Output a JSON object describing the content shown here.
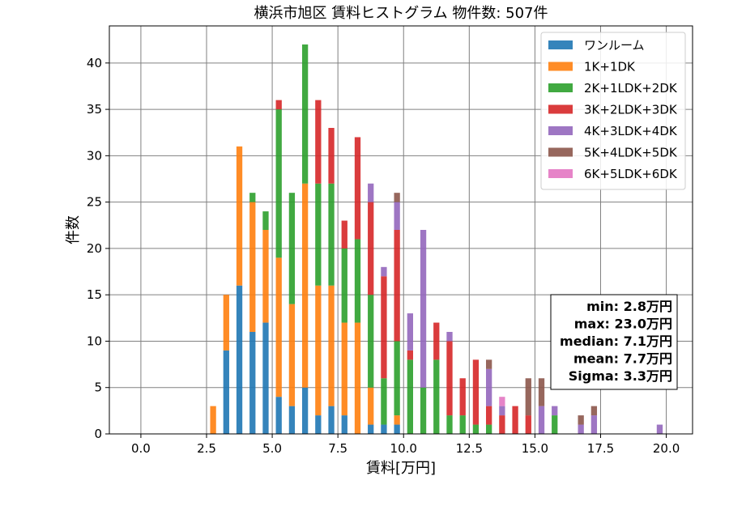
{
  "chart_data": {
    "type": "bar",
    "stacked": true,
    "title": "横浜市旭区 賃料ヒストグラム 物件数: 507件",
    "xlabel": "賃料[万円]",
    "ylabel": "件数",
    "xlim": [
      -1.2,
      21.0
    ],
    "ylim": [
      0,
      44
    ],
    "xticks": [
      "0.0",
      "2.5",
      "5.0",
      "7.5",
      "10.0",
      "12.5",
      "15.0",
      "17.5",
      "20.0"
    ],
    "yticks": [
      "0",
      "5",
      "10",
      "15",
      "20",
      "25",
      "30",
      "35",
      "40"
    ],
    "grid": true,
    "legend_position": "top-right",
    "bin_centers": [
      2.5,
      2.75,
      3.0,
      3.25,
      3.5,
      3.75,
      4.0,
      4.25,
      4.5,
      4.75,
      5.0,
      5.25,
      5.5,
      5.75,
      6.0,
      6.25,
      6.5,
      6.75,
      7.0,
      7.25,
      7.5,
      7.75,
      8.0,
      8.25,
      8.5,
      8.75,
      9.0,
      9.25,
      9.5,
      9.75,
      10.0,
      10.25,
      10.5,
      10.75,
      11.0,
      11.25,
      11.5,
      11.75,
      12.0,
      12.25,
      12.5,
      12.75,
      13.0,
      13.25,
      13.5,
      13.75,
      14.0,
      14.25,
      14.5,
      14.75,
      15.0,
      15.25,
      15.5,
      15.75,
      16.0,
      16.25,
      16.5,
      16.75,
      17.0,
      17.25,
      17.5,
      17.75,
      18.0,
      18.25,
      18.5,
      18.75,
      19.0,
      19.25,
      19.5,
      19.75
    ],
    "series": [
      {
        "name": "ワンルーム",
        "color": "#1f77b4",
        "values": [
          0,
          0,
          0,
          9,
          0,
          16,
          0,
          11,
          0,
          12,
          0,
          4,
          0,
          3,
          0,
          5,
          0,
          2,
          0,
          3,
          0,
          2,
          0,
          0,
          0,
          1,
          0,
          1,
          0,
          1,
          0,
          0,
          0,
          0,
          0,
          0,
          0,
          0,
          0,
          0,
          0,
          0,
          0,
          0,
          0,
          0,
          0,
          0,
          0,
          0,
          0,
          0,
          0,
          0,
          0,
          0,
          0,
          0,
          0,
          0,
          0,
          0,
          0,
          0,
          0,
          0,
          0,
          0,
          0,
          0
        ]
      },
      {
        "name": "1K+1DK",
        "color": "#ff7f0e",
        "values": [
          0,
          3,
          0,
          6,
          0,
          15,
          0,
          14,
          0,
          10,
          0,
          15,
          0,
          11,
          0,
          22,
          0,
          14,
          0,
          13,
          0,
          10,
          0,
          12,
          0,
          4,
          0,
          0,
          0,
          1,
          0,
          0,
          0,
          0,
          0,
          0,
          0,
          0,
          0,
          0,
          0,
          0,
          0,
          0,
          0,
          0,
          0,
          0,
          0,
          0,
          0,
          0,
          0,
          0,
          0,
          0,
          0,
          0,
          0,
          0,
          0,
          0,
          0,
          0,
          0,
          0,
          0,
          0,
          0,
          0
        ]
      },
      {
        "name": "2K+1LDK+2DK",
        "color": "#2ca02c",
        "values": [
          0,
          0,
          0,
          0,
          0,
          0,
          0,
          1,
          0,
          2,
          0,
          16,
          0,
          12,
          0,
          15,
          0,
          11,
          0,
          11,
          0,
          8,
          0,
          9,
          0,
          10,
          0,
          5,
          0,
          8,
          0,
          8,
          0,
          5,
          0,
          8,
          0,
          2,
          0,
          2,
          0,
          1,
          0,
          1,
          0,
          0,
          0,
          0,
          0,
          0,
          0,
          0,
          0,
          2,
          0,
          0,
          0,
          0,
          0,
          0,
          0,
          0,
          0,
          0,
          0,
          0,
          0,
          0,
          0,
          0
        ]
      },
      {
        "name": "3K+2LDK+3DK",
        "color": "#d62728",
        "values": [
          0,
          0,
          0,
          0,
          0,
          0,
          0,
          0,
          0,
          0,
          0,
          1,
          0,
          0,
          0,
          0,
          0,
          9,
          0,
          6,
          0,
          3,
          0,
          11,
          0,
          10,
          0,
          11,
          0,
          12,
          0,
          1,
          0,
          0,
          0,
          4,
          0,
          8,
          0,
          4,
          0,
          7,
          0,
          2,
          0,
          2,
          0,
          3,
          0,
          2,
          0,
          0,
          0,
          0,
          0,
          0,
          0,
          0,
          0,
          0,
          0,
          0,
          0,
          0,
          0,
          0,
          0,
          0,
          0,
          0
        ]
      },
      {
        "name": "4K+3LDK+4DK",
        "color": "#9467bd",
        "values": [
          0,
          0,
          0,
          0,
          0,
          0,
          0,
          0,
          0,
          0,
          0,
          0,
          0,
          0,
          0,
          0,
          0,
          0,
          0,
          0,
          0,
          0,
          0,
          0,
          0,
          2,
          0,
          1,
          0,
          3,
          0,
          4,
          0,
          17,
          0,
          0,
          0,
          1,
          0,
          0,
          0,
          0,
          0,
          4,
          0,
          1,
          0,
          0,
          0,
          0,
          0,
          3,
          0,
          1,
          0,
          0,
          0,
          1,
          0,
          2,
          0,
          0,
          0,
          0,
          0,
          0,
          0,
          0,
          0,
          1
        ]
      },
      {
        "name": "5K+4LDK+5DK",
        "color": "#8c564b",
        "values": [
          0,
          0,
          0,
          0,
          0,
          0,
          0,
          0,
          0,
          0,
          0,
          0,
          0,
          0,
          0,
          0,
          0,
          0,
          0,
          0,
          0,
          0,
          0,
          0,
          0,
          0,
          0,
          0,
          0,
          1,
          0,
          0,
          0,
          0,
          0,
          0,
          0,
          0,
          0,
          0,
          0,
          0,
          0,
          1,
          0,
          0,
          0,
          0,
          0,
          4,
          0,
          3,
          0,
          0,
          0,
          0,
          0,
          1,
          0,
          1,
          0,
          0,
          0,
          0,
          0,
          0,
          0,
          0,
          0,
          0
        ]
      },
      {
        "name": "6K+5LDK+6DK",
        "color": "#e377c2",
        "values": [
          0,
          0,
          0,
          0,
          0,
          0,
          0,
          0,
          0,
          0,
          0,
          0,
          0,
          0,
          0,
          0,
          0,
          0,
          0,
          0,
          0,
          0,
          0,
          0,
          0,
          0,
          0,
          0,
          0,
          0,
          0,
          0,
          0,
          0,
          0,
          0,
          0,
          0,
          0,
          0,
          0,
          0,
          0,
          0,
          0,
          1,
          0,
          0,
          0,
          0,
          0,
          0,
          0,
          0,
          0,
          0,
          0,
          0,
          0,
          0,
          0,
          0,
          0,
          0,
          0,
          0,
          0,
          0,
          0,
          0
        ]
      }
    ],
    "stats": [
      "min: 2.8万円",
      "max: 23.0万円",
      "median: 7.1万円",
      "mean: 7.7万円",
      "Sigma: 3.3万円"
    ]
  }
}
